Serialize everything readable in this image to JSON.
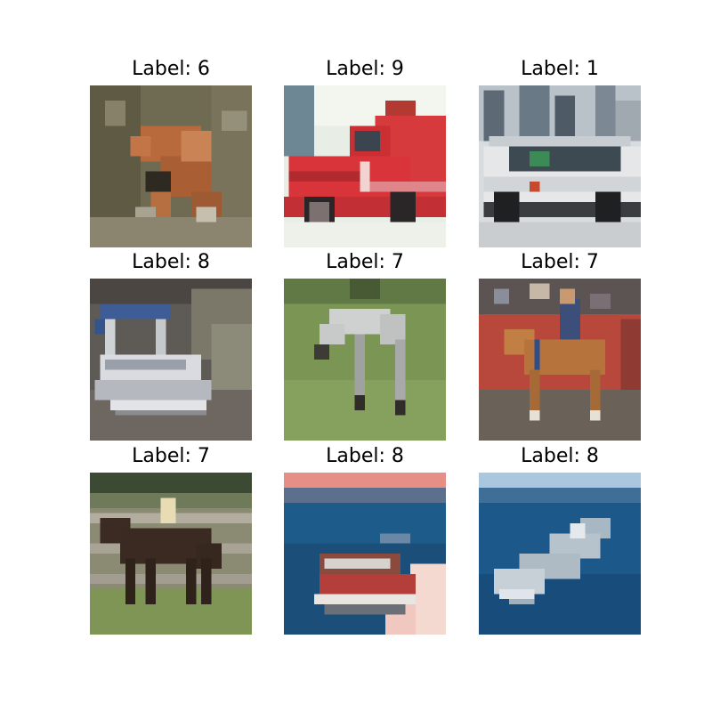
{
  "images": [
    {
      "title": "Label: 6",
      "subject": "frog"
    },
    {
      "title": "Label: 9",
      "subject": "fire truck"
    },
    {
      "title": "Label: 1",
      "subject": "van"
    },
    {
      "title": "Label: 8",
      "subject": "pontoon boat"
    },
    {
      "title": "Label: 7",
      "subject": "grey horse"
    },
    {
      "title": "Label: 7",
      "subject": "horse with rider"
    },
    {
      "title": "Label: 7",
      "subject": "dark horse with rider"
    },
    {
      "title": "Label: 8",
      "subject": "boat on water"
    },
    {
      "title": "Label: 8",
      "subject": "ship on sea"
    }
  ]
}
